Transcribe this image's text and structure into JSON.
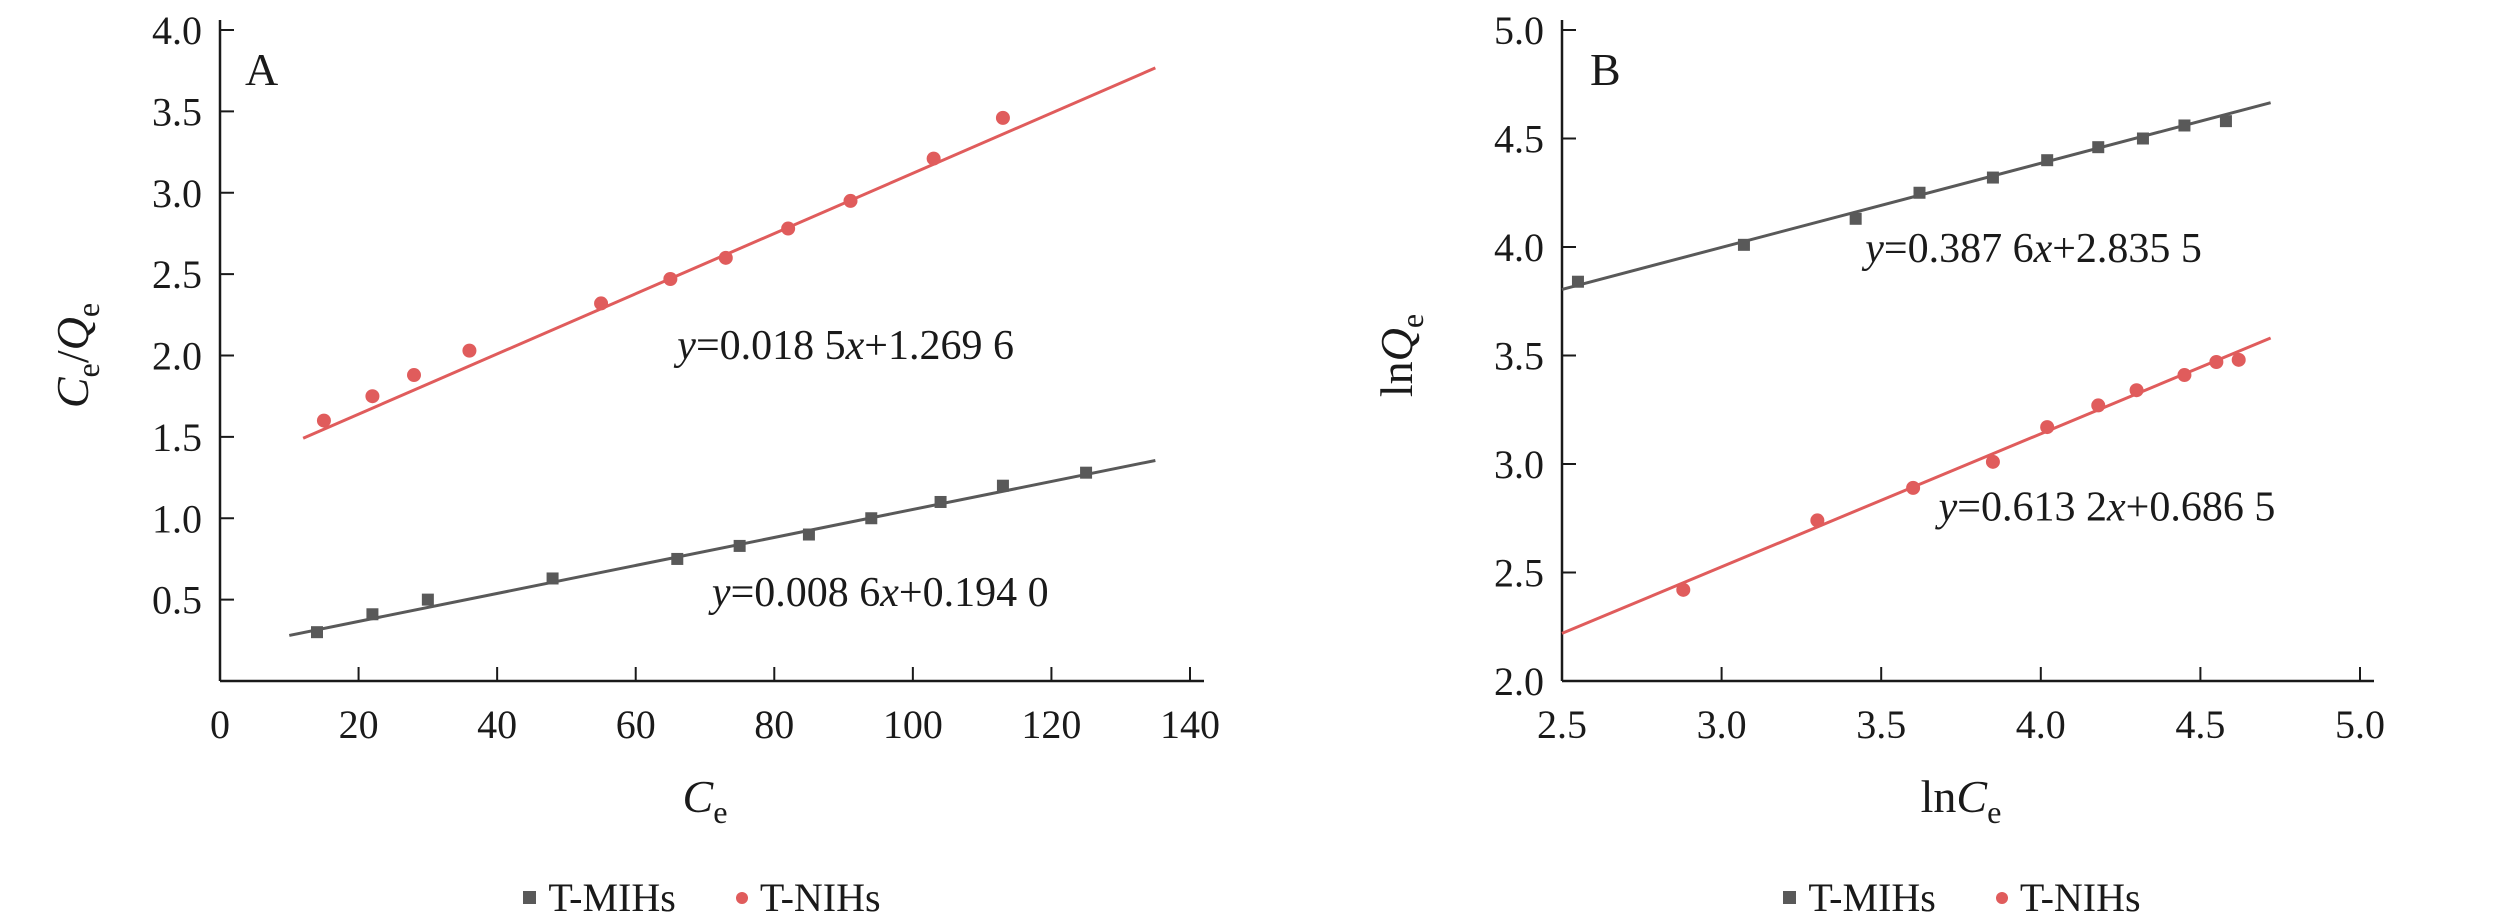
{
  "figure": {
    "background": "#ffffff",
    "ink_color": "#1a1a1a",
    "gray_series_color": "#595959",
    "red_series_color": "#e05c5c"
  },
  "chart_data": [
    {
      "type": "scatter",
      "panel_label": "A",
      "xlabel": "Ce",
      "ylabel": "Ce/Qe",
      "xlabel_segments": [
        {
          "text": "C",
          "italic": true
        },
        {
          "text": "e",
          "sub": true
        }
      ],
      "ylabel_segments": [
        {
          "text": "C",
          "italic": true
        },
        {
          "text": "e",
          "sub": true
        },
        {
          "text": "/"
        },
        {
          "text": "Q",
          "italic": true
        },
        {
          "text": "e",
          "sub": true
        }
      ],
      "xlim": [
        0,
        140
      ],
      "ylim": [
        0,
        4.0
      ],
      "xtick_values": [
        0,
        20,
        40,
        60,
        80,
        100,
        120,
        140
      ],
      "xtick_labels": [
        "0",
        "20",
        "40",
        "60",
        "80",
        "100",
        "120",
        "140"
      ],
      "ytick_values": [
        0.5,
        1.0,
        1.5,
        2.0,
        2.5,
        3.0,
        3.5,
        4.0
      ],
      "ytick_labels": [
        "0.5",
        "1.0",
        "1.5",
        "2.0",
        "2.5",
        "3.0",
        "3.5",
        "4.0"
      ],
      "grid": false,
      "legend_position": "bottom",
      "series": [
        {
          "name": "T-MIHs",
          "marker": "square",
          "color": "#595959",
          "x": [
            14,
            22,
            30,
            48,
            66,
            75,
            85,
            94,
            104,
            113,
            125
          ],
          "y": [
            0.3,
            0.41,
            0.5,
            0.63,
            0.75,
            0.83,
            0.9,
            1.0,
            1.1,
            1.2,
            1.28
          ],
          "fit_line": {
            "slope": 0.0086,
            "intercept": 0.194,
            "x_range": [
              10,
              135
            ]
          },
          "equation_text": "y=0.008 6x+0.194 0",
          "equation_segments": [
            {
              "text": "y",
              "italic": true
            },
            {
              "text": "=0.008 6"
            },
            {
              "text": "x",
              "italic": true
            },
            {
              "text": "+0.194 0"
            }
          ],
          "equation_pos": [
            71,
            0.46
          ]
        },
        {
          "name": "T-NIHs",
          "marker": "circle",
          "color": "#e05c5c",
          "x": [
            15,
            22,
            28,
            36,
            55,
            65,
            73,
            82,
            91,
            103,
            113
          ],
          "y": [
            1.6,
            1.75,
            1.88,
            2.03,
            2.32,
            2.47,
            2.6,
            2.78,
            2.95,
            3.21,
            3.46
          ],
          "fit_line": {
            "slope": 0.0185,
            "intercept": 1.2696,
            "x_range": [
              12,
              135
            ]
          },
          "equation_text": "y=0.018 5x+1.269 6",
          "equation_segments": [
            {
              "text": "y",
              "italic": true
            },
            {
              "text": "=0.018 5"
            },
            {
              "text": "x",
              "italic": true
            },
            {
              "text": "+1.269 6"
            }
          ],
          "equation_pos": [
            66,
            1.98
          ]
        }
      ]
    },
    {
      "type": "scatter",
      "panel_label": "B",
      "xlabel": "lnCe",
      "ylabel": "lnQe",
      "xlabel_segments": [
        {
          "text": "ln"
        },
        {
          "text": "C",
          "italic": true
        },
        {
          "text": "e",
          "sub": true
        }
      ],
      "ylabel_segments": [
        {
          "text": "ln"
        },
        {
          "text": "Q",
          "italic": true
        },
        {
          "text": "e",
          "sub": true
        }
      ],
      "xlim": [
        2.5,
        5.0
      ],
      "ylim": [
        2.0,
        5.0
      ],
      "xtick_values": [
        2.5,
        3.0,
        3.5,
        4.0,
        4.5,
        5.0
      ],
      "xtick_labels": [
        "2.5",
        "3.0",
        "3.5",
        "4.0",
        "4.5",
        "5.0"
      ],
      "ytick_values": [
        2.0,
        2.5,
        3.0,
        3.5,
        4.0,
        4.5,
        5.0
      ],
      "ytick_labels": [
        "2.0",
        "2.5",
        "3.0",
        "3.5",
        "4.0",
        "4.5",
        "5.0"
      ],
      "grid": false,
      "legend_position": "bottom",
      "series": [
        {
          "name": "T-MIHs",
          "marker": "square",
          "color": "#595959",
          "x": [
            2.55,
            3.07,
            3.42,
            3.62,
            3.85,
            4.02,
            4.18,
            4.32,
            4.45,
            4.58
          ],
          "y": [
            3.84,
            4.01,
            4.13,
            4.25,
            4.32,
            4.4,
            4.46,
            4.5,
            4.56,
            4.58
          ],
          "fit_line": {
            "slope": 0.3876,
            "intercept": 2.8355,
            "x_range": [
              2.5,
              4.72
            ]
          },
          "equation_text": "y=0.387 6x+2.835 5",
          "equation_segments": [
            {
              "text": "y",
              "italic": true
            },
            {
              "text": "=0.387 6"
            },
            {
              "text": "x",
              "italic": true
            },
            {
              "text": "+2.835 5"
            }
          ],
          "equation_pos": [
            3.45,
            3.93
          ]
        },
        {
          "name": "T-NIHs",
          "marker": "circle",
          "color": "#e05c5c",
          "x": [
            2.88,
            3.3,
            3.6,
            3.85,
            4.02,
            4.18,
            4.3,
            4.45,
            4.55,
            4.62
          ],
          "y": [
            2.42,
            2.74,
            2.89,
            3.01,
            3.17,
            3.27,
            3.34,
            3.41,
            3.47,
            3.48
          ],
          "fit_line": {
            "slope": 0.6132,
            "intercept": 0.6865,
            "x_range": [
              2.5,
              4.72
            ]
          },
          "equation_text": "y=0.613 2x+0.686 5",
          "equation_segments": [
            {
              "text": "y",
              "italic": true
            },
            {
              "text": "=0.613 2"
            },
            {
              "text": "x",
              "italic": true
            },
            {
              "text": "+0.686 5"
            }
          ],
          "equation_pos": [
            3.68,
            2.74
          ]
        }
      ]
    }
  ]
}
